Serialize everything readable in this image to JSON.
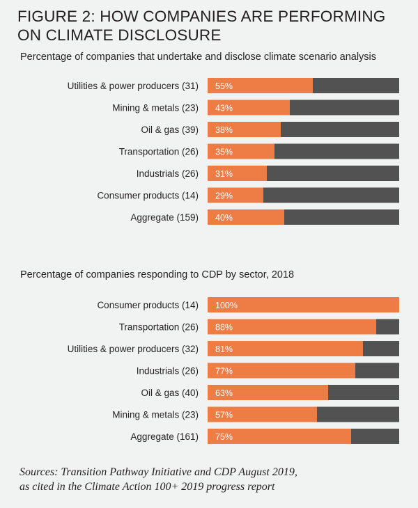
{
  "title_line1": "FIGURE 2: HOW COMPANIES ARE PERFORMING",
  "title_line2": "ON CLIMATE DISCLOSURE",
  "colors": {
    "filled": "#ee7d45",
    "remainder": "#525252",
    "text": "#231f20",
    "background": "#f1f2f2"
  },
  "chart_data": [
    {
      "type": "bar",
      "orientation": "horizontal",
      "stacked": true,
      "title": "Percentage of companies that undertake and disclose climate scenario analysis",
      "xlim": [
        0,
        100
      ],
      "unit": "%",
      "categories": [
        "Utilities & power producers (31)",
        "Mining & metals (23)",
        "Oil & gas (39)",
        "Transportation (26)",
        "Industrials (26)",
        "Consumer products (14)",
        "Aggregate (159)"
      ],
      "values": [
        55,
        43,
        38,
        35,
        31,
        29,
        40
      ],
      "value_labels": [
        "55%",
        "43%",
        "38%",
        "35%",
        "31%",
        "29%",
        "40%"
      ]
    },
    {
      "type": "bar",
      "orientation": "horizontal",
      "stacked": true,
      "title": "Percentage of companies responding to CDP by sector, 2018",
      "xlim": [
        0,
        100
      ],
      "unit": "%",
      "categories": [
        "Consumer products (14)",
        "Transportation (26)",
        "Utilities & power producers (32)",
        "Industrials (26)",
        "Oil & gas (40)",
        "Mining & metals (23)",
        "Aggregate (161)"
      ],
      "values": [
        100,
        88,
        81,
        77,
        63,
        57,
        75
      ],
      "value_labels": [
        "100%",
        "88%",
        "81%",
        "77%",
        "63%",
        "57%",
        "75%"
      ]
    }
  ],
  "source_line1": "Sources: Transition Pathway Initiative and CDP August 2019,",
  "source_line2": "as cited in the Climate Action 100+ 2019 progress report"
}
